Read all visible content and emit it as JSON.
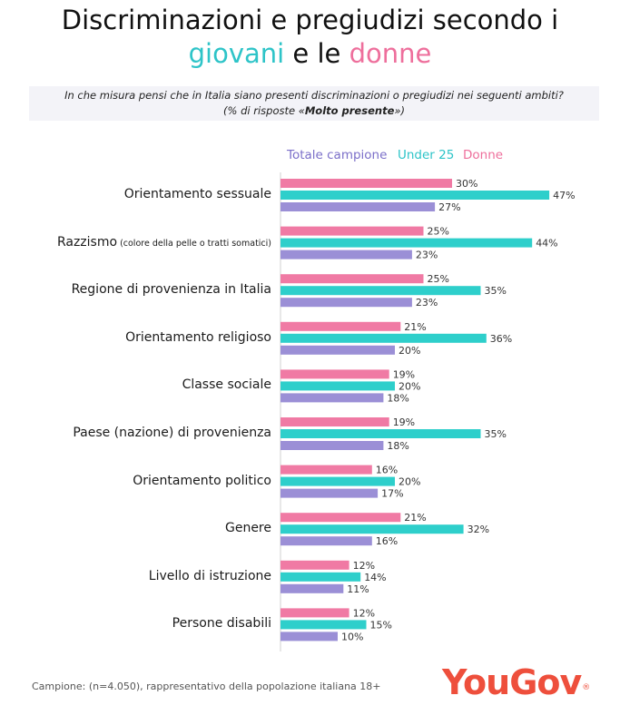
{
  "title": {
    "line1": "Discriminazioni e pregiudizi secondo i",
    "word_giovani": "giovani",
    "word_e_le": " e le ",
    "word_donne": "donne"
  },
  "question": {
    "line1": "In che misura pensi che in Italia siano presenti discriminazioni o pregiudizi nei seguenti ambiti?",
    "line2_prefix": "(% di risposte «",
    "line2_bold": "Molto presente",
    "line2_suffix": "»)"
  },
  "footer": "Campione: (n=4.050), rappresentativo della popolazione italiana 18+",
  "logo": {
    "text": "YouGov",
    "mark": "®"
  },
  "colors": {
    "title_teal": "#2ec4c8",
    "title_pink": "#ee6f9c",
    "total": "#9b8fd6",
    "under25": "#2ecfcb",
    "donne": "#f07aa4",
    "legend_total": "#7b6fc9",
    "legend_under25": "#2ec4c8",
    "legend_donne": "#ee6f9c",
    "logo": "#ee4f3c"
  },
  "chart_data": {
    "type": "bar",
    "orientation": "horizontal",
    "categories": [
      "Orientamento sessuale",
      "Razzismo",
      "Regione di provenienza in Italia",
      "Orientamento religioso",
      "Classe sociale",
      "Paese (nazione) di provenienza",
      "Orientamento politico",
      "Genere",
      "Livello di istruzione",
      "Persone disabili"
    ],
    "category_notes": [
      "",
      "(colore della pelle o tratti somatici)",
      "",
      "",
      "",
      "",
      "",
      "",
      "",
      ""
    ],
    "legend": [
      "Totale campione",
      "Under 25",
      "Donne"
    ],
    "series": [
      {
        "name": "Donne",
        "values": [
          30,
          25,
          25,
          21,
          19,
          19,
          16,
          21,
          12,
          12
        ]
      },
      {
        "name": "Under 25",
        "values": [
          47,
          44,
          35,
          36,
          20,
          35,
          20,
          32,
          14,
          15
        ]
      },
      {
        "name": "Totale campione",
        "values": [
          27,
          23,
          23,
          20,
          18,
          18,
          17,
          16,
          11,
          10
        ]
      }
    ],
    "value_suffix": "%",
    "xlim": [
      0,
      50
    ],
    "legend_position": "top",
    "grid": false
  }
}
